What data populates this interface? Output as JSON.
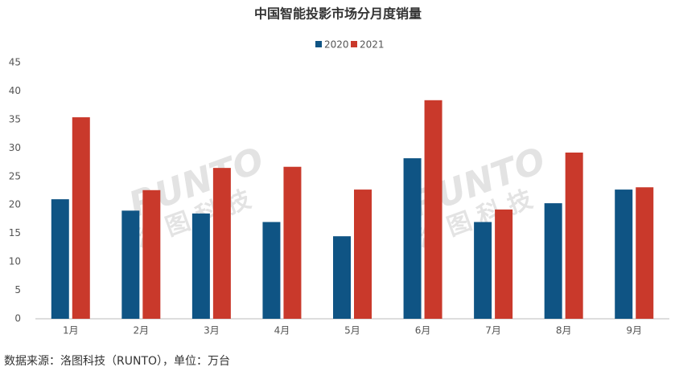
{
  "chart_data": {
    "type": "bar",
    "title": "中国智能投影市场分月度销量",
    "categories": [
      "1月",
      "2月",
      "3月",
      "4月",
      "5月",
      "6月",
      "7月",
      "8月",
      "9月"
    ],
    "series": [
      {
        "name": "2020",
        "color": "#0f5484",
        "values": [
          21,
          19,
          18.5,
          17,
          14.5,
          28.2,
          17,
          20.3,
          22.7
        ]
      },
      {
        "name": "2021",
        "color": "#c9392b",
        "values": [
          35.4,
          22.6,
          26.5,
          26.7,
          22.7,
          38.4,
          19.2,
          29.2,
          23.1
        ]
      }
    ],
    "ylim": [
      0,
      45
    ],
    "yticks": [
      0,
      5,
      10,
      15,
      20,
      25,
      30,
      35,
      40,
      45
    ],
    "grid": false,
    "legend": "top",
    "watermark": [
      "RUNTO",
      "洛图科技"
    ],
    "source": "数据来源：洛图科技（RUNTO），单位：万台"
  }
}
